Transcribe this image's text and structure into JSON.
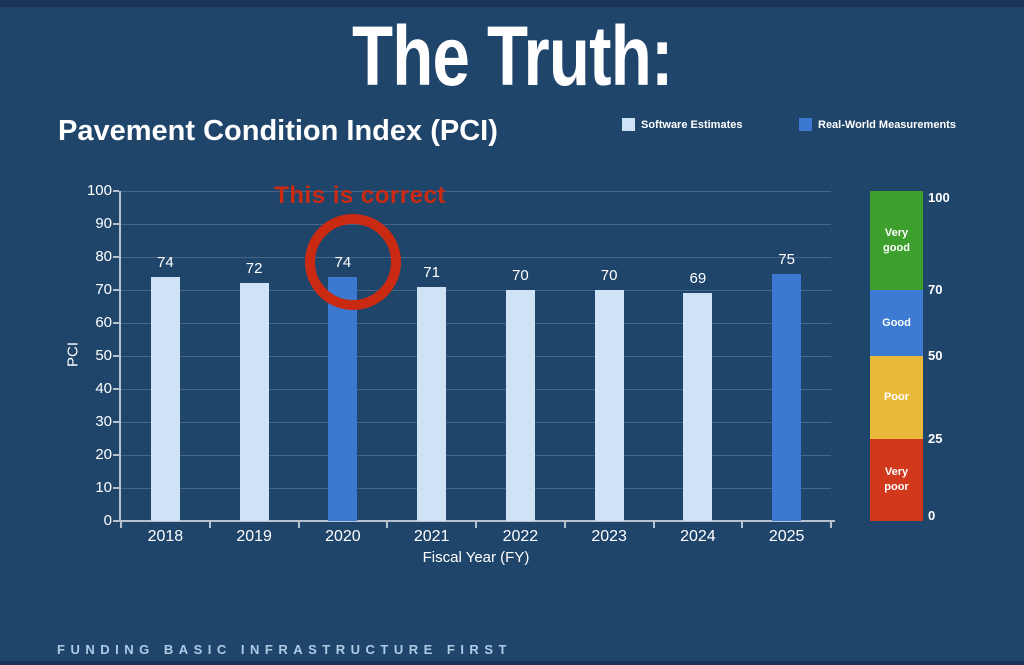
{
  "slide": {
    "title": "The Truth:",
    "subtitle": "Pavement Condition Index (PCI)",
    "footer": "FUNDING BASIC INFRASTRUCTURE FIRST"
  },
  "legend": {
    "items": [
      {
        "label": "Software Estimates",
        "color": "#cfe3f6"
      },
      {
        "label": "Real-World Measurements",
        "color": "#3b78d1"
      }
    ]
  },
  "chart_data": {
    "type": "bar",
    "title": "Pavement Condition Index (PCI)",
    "xlabel": "Fiscal Year (FY)",
    "ylabel": "PCI",
    "ylim": [
      0,
      100
    ],
    "ytick_step": 10,
    "grid": true,
    "legend_position": "top-right",
    "categories": [
      "2018",
      "2019",
      "2020",
      "2021",
      "2022",
      "2023",
      "2024",
      "2025"
    ],
    "values": [
      74,
      72,
      74,
      71,
      70,
      70,
      69,
      75
    ],
    "series_by_bar": [
      "Software Estimates",
      "Software Estimates",
      "Real-World Measurements",
      "Software Estimates",
      "Software Estimates",
      "Software Estimates",
      "Software Estimates",
      "Real-World Measurements"
    ],
    "annotation": {
      "text": "This is correct",
      "target_category": "2020",
      "shape": "circle",
      "color": "#cb2a12"
    }
  },
  "rating_scale": {
    "ticks": [
      100,
      70,
      50,
      25,
      0
    ],
    "bands": [
      {
        "label": "Very\ngood",
        "min": 70,
        "max": 100,
        "color": "#3da02c"
      },
      {
        "label": "Good",
        "min": 50,
        "max": 70,
        "color": "#3d7ad3"
      },
      {
        "label": "Poor",
        "min": 25,
        "max": 50,
        "color": "#e9b93a"
      },
      {
        "label": "Very\npoor",
        "min": 0,
        "max": 25,
        "color": "#d2381b"
      }
    ]
  },
  "colors": {
    "background": "#20456b",
    "accent_red": "#cb2a12",
    "axis": "#b6c2ce",
    "text": "#ffffff",
    "footer_text": "#aecbe6"
  }
}
